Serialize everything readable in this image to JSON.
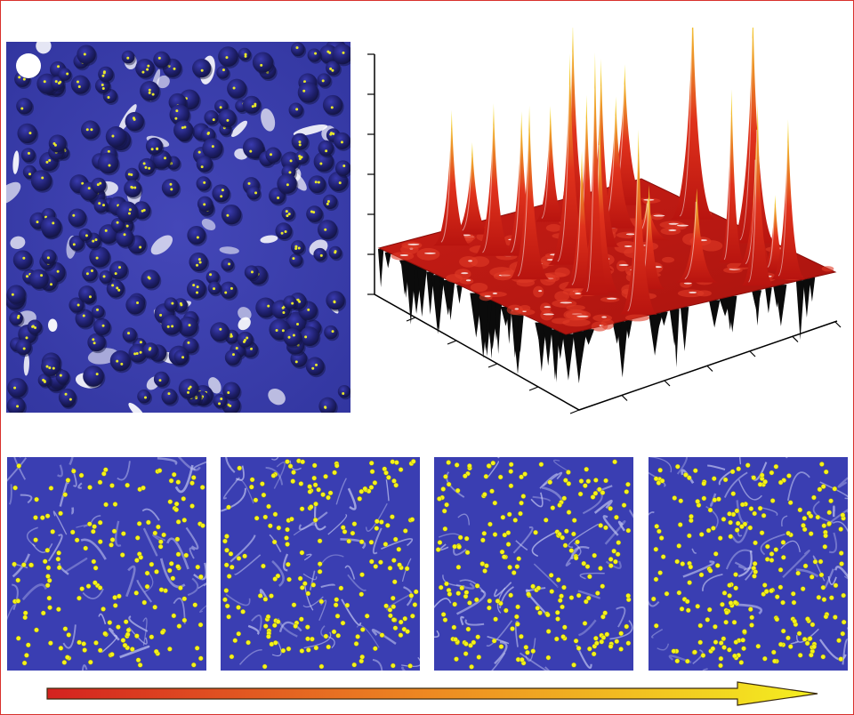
{
  "figure": {
    "top_left": {
      "kind": "blue field with dark discs containing yellow particles",
      "colors": {
        "background": "#3b3fb0",
        "disc": "#1e1f6e",
        "highlight": "#ffffff",
        "particle": "#e8e82a"
      }
    },
    "surface_plot": {
      "kind": "3d red surface with yellow-tipped spikes",
      "colors": {
        "surface": "#d3221a",
        "peak": "#f2e23a",
        "underside": "#0b0b0b",
        "axis": "#000000"
      },
      "axis_ticks_visible": true,
      "tick_labels": []
    },
    "sequence_panels": [
      {
        "id": "stage-1",
        "particle_color": "#f5f21a"
      },
      {
        "id": "stage-2",
        "particle_color": "#f5f21a"
      },
      {
        "id": "stage-3",
        "particle_color": "#f5f21a"
      },
      {
        "id": "stage-4",
        "particle_color": "#f5f21a"
      }
    ],
    "progress_arrow": {
      "direction": "right",
      "gradient": [
        "#d42220",
        "#f4f020"
      ]
    }
  }
}
